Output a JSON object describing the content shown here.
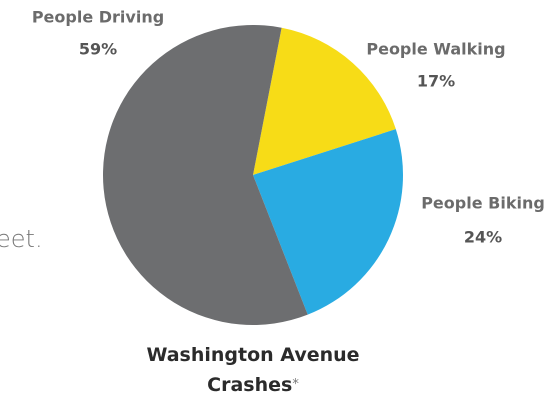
{
  "chart_data": {
    "type": "pie",
    "title": "Washington Avenue Crashes",
    "title_marker": "*",
    "background_text": "eet.",
    "categories": [
      "People Walking",
      "People Biking",
      "People Driving"
    ],
    "values": [
      17,
      24,
      59
    ],
    "value_labels": [
      "17%",
      "24%",
      "59%"
    ],
    "colors": [
      "#f7dc17",
      "#29abe2",
      "#6d6e70"
    ]
  }
}
